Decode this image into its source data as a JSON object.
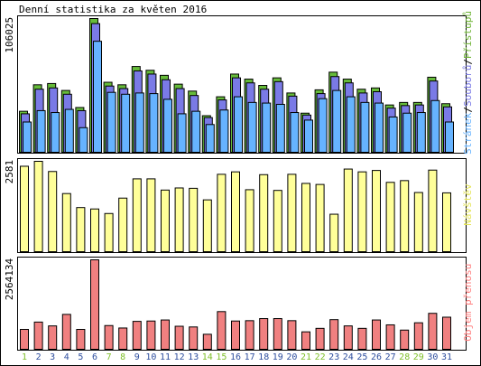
{
  "chart_data": {
    "type": "bar",
    "title": "Denní statistika za květen 2016",
    "days": [
      "1",
      "2",
      "3",
      "4",
      "5",
      "6",
      "7",
      "8",
      "9",
      "10",
      "11",
      "12",
      "13",
      "14",
      "15",
      "16",
      "17",
      "18",
      "19",
      "20",
      "21",
      "22",
      "23",
      "24",
      "25",
      "26",
      "27",
      "28",
      "29",
      "30",
      "31"
    ],
    "weekend_days": [
      "1",
      "7",
      "8",
      "14",
      "15",
      "21",
      "22",
      "28",
      "29"
    ],
    "panels": [
      {
        "name": "hits",
        "max_label": "106025",
        "ymax": 106025,
        "side_label": {
          "parts": [
            {
              "text": "Stránek",
              "color": "#66b3ff"
            },
            {
              "text": "/",
              "color": "#000000"
            },
            {
              "text": "Souborů",
              "color": "#7a7ae6"
            },
            {
              "text": "/",
              "color": "#000000"
            },
            {
              "text": "Přístupů",
              "color": "#6fb436"
            }
          ]
        },
        "series": [
          {
            "name": "Přístupů",
            "color": "#66bb3a",
            "values": [
              32500,
              53500,
              54500,
              49000,
              35500,
              106025,
              55500,
              53500,
              68000,
              65000,
              61000,
              54000,
              48500,
              29000,
              44000,
              62000,
              58000,
              53000,
              59000,
              47000,
              31000,
              49500,
              63500,
              58000,
              50000,
              51000,
              37500,
              39500,
              39500,
              59500,
              38500
            ]
          },
          {
            "name": "Souborů",
            "color": "#7a7ae6",
            "values": [
              30500,
              50000,
              51000,
              46000,
              33000,
              102000,
              52500,
              50500,
              64500,
              62000,
              57500,
              50500,
              45000,
              27500,
              41500,
              59000,
              55000,
              50000,
              56000,
              44500,
              29500,
              46500,
              60000,
              55000,
              47000,
              48000,
              35000,
              37000,
              37500,
              56500,
              36000
            ]
          },
          {
            "name": "Stránek",
            "color": "#66b3ff",
            "values": [
              24000,
              33000,
              31500,
              34000,
              19500,
              88000,
              47500,
              46000,
              47000,
              46500,
              42000,
              30500,
              32500,
              22000,
              33500,
              44000,
              39500,
              39000,
              38000,
              31500,
              25500,
              42500,
              49000,
              44000,
              39500,
              39000,
              28000,
              31000,
              31500,
              41000,
              24000
            ]
          }
        ]
      },
      {
        "name": "visits",
        "max_label": "2581",
        "ymax": 2581,
        "side_label": {
          "parts": [
            {
              "text": "Návštěv",
              "color": "#e5e55a"
            }
          ]
        },
        "series": [
          {
            "name": "Návštěv",
            "color": "#ffff99",
            "values": [
              2440,
              2581,
              2290,
              1660,
              1260,
              1220,
              1090,
              1530,
              2080,
              2080,
              1760,
              1820,
              1810,
              1480,
              2210,
              2280,
              1770,
              2200,
              1750,
              2210,
              1950,
              1920,
              1070,
              2360,
              2280,
              2320,
              1980,
              2030,
              1690,
              2330,
              1680
            ]
          }
        ]
      },
      {
        "name": "volume",
        "max_label": "2564134",
        "ymax": 2564134,
        "side_label": {
          "parts": [
            {
              "text": "Objem přenosu",
              "color": "#ff8080"
            }
          ]
        },
        "series": [
          {
            "name": "Objem přenosu",
            "color": "#f08080",
            "values": [
              570000,
              780000,
              670000,
              1000000,
              570000,
              2564134,
              680000,
              610000,
              800000,
              810000,
              840000,
              660000,
              640000,
              430000,
              1080000,
              810000,
              820000,
              880000,
              880000,
              820000,
              500000,
              600000,
              850000,
              670000,
              600000,
              840000,
              700000,
              550000,
              760000,
              1030000,
              920000
            ]
          }
        ]
      }
    ],
    "colors": {
      "weekend": "#7fbf2a",
      "weekday": "#2f4f9f",
      "frame": "#000000"
    }
  }
}
